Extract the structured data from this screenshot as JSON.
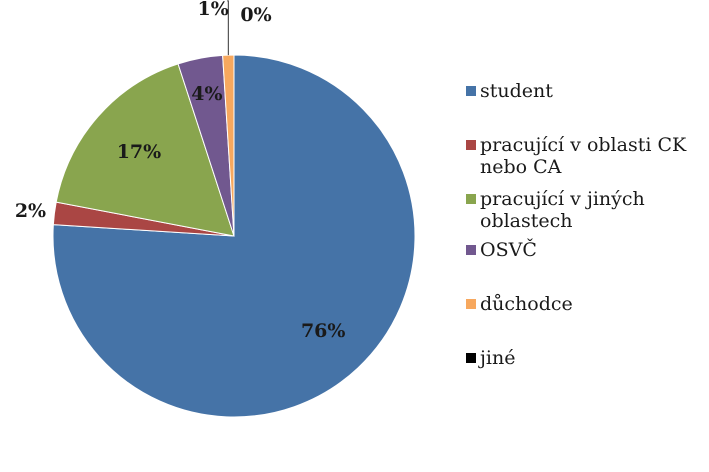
{
  "chart_data": {
    "type": "pie",
    "title": "",
    "categories": [
      "student",
      "pracující v oblasti CK nebo CA",
      "pracující v jiných oblastech",
      "OSVČ",
      "důchodce",
      "jiné"
    ],
    "legend_lines": [
      [
        "student"
      ],
      [
        "pracující v oblasti CK",
        "nebo CA"
      ],
      [
        "pracující v jiných",
        "oblastech"
      ],
      [
        "OSVČ"
      ],
      [
        "důchodce"
      ],
      [
        "jiné"
      ]
    ],
    "values": [
      76,
      2,
      17,
      4,
      1,
      0
    ],
    "labels": [
      "76%",
      "2%",
      "17%",
      "4%",
      "1%",
      "0%"
    ],
    "colors": [
      "#4573A7",
      "#AA4644",
      "#89A54E",
      "#71588F",
      "#F7A85E",
      "#000000"
    ],
    "legend_position": "right"
  }
}
